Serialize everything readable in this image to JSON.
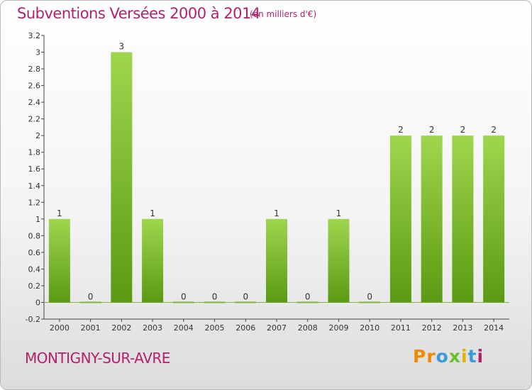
{
  "header": {
    "title": "Subventions Versées 2000 à 2014",
    "unit": "(en milliers d'€)"
  },
  "footer": {
    "town": "MONTIGNY-SUR-AVRE",
    "logo_letters": [
      "P",
      "r",
      "o",
      "x",
      "i",
      "t",
      "i"
    ],
    "logo_colors": [
      "#f08a00",
      "#f08a00",
      "#3a9ad9",
      "#6cbf2a",
      "#e0b400",
      "#3a9ad9",
      "#b0226b"
    ]
  },
  "colors": {
    "accent": "#b0226b",
    "bar_top": "#9fd64e",
    "bar_bottom": "#5a9a12",
    "zero_line": "#7fb83a"
  },
  "chart_data": {
    "type": "bar",
    "categories": [
      "2000",
      "2001",
      "2002",
      "2003",
      "2004",
      "2005",
      "2006",
      "2007",
      "2008",
      "2009",
      "2010",
      "2011",
      "2012",
      "2013",
      "2014"
    ],
    "values": [
      1,
      0,
      3,
      1,
      0,
      0,
      0,
      1,
      0,
      1,
      0,
      2,
      2,
      2,
      2
    ],
    "data_labels": [
      "1",
      "0",
      "3",
      "1",
      "0",
      "0",
      "0",
      "1",
      "0",
      "1",
      "0",
      "2",
      "2",
      "2",
      "2"
    ],
    "y_ticks": [
      "-0.2",
      "0",
      "0.2",
      "0.4",
      "0.6",
      "0.8",
      "1",
      "1.2",
      "1.4",
      "1.6",
      "1.8",
      "2",
      "2.2",
      "2.4",
      "2.6",
      "2.8",
      "3",
      "3.2"
    ],
    "y_tick_values": [
      -0.2,
      0,
      0.2,
      0.4,
      0.6,
      0.8,
      1,
      1.2,
      1.4,
      1.6,
      1.8,
      2,
      2.2,
      2.4,
      2.6,
      2.8,
      3,
      3.2
    ],
    "ylim": [
      -0.2,
      3.2
    ],
    "grid": false,
    "xlabel": "",
    "ylabel": ""
  }
}
